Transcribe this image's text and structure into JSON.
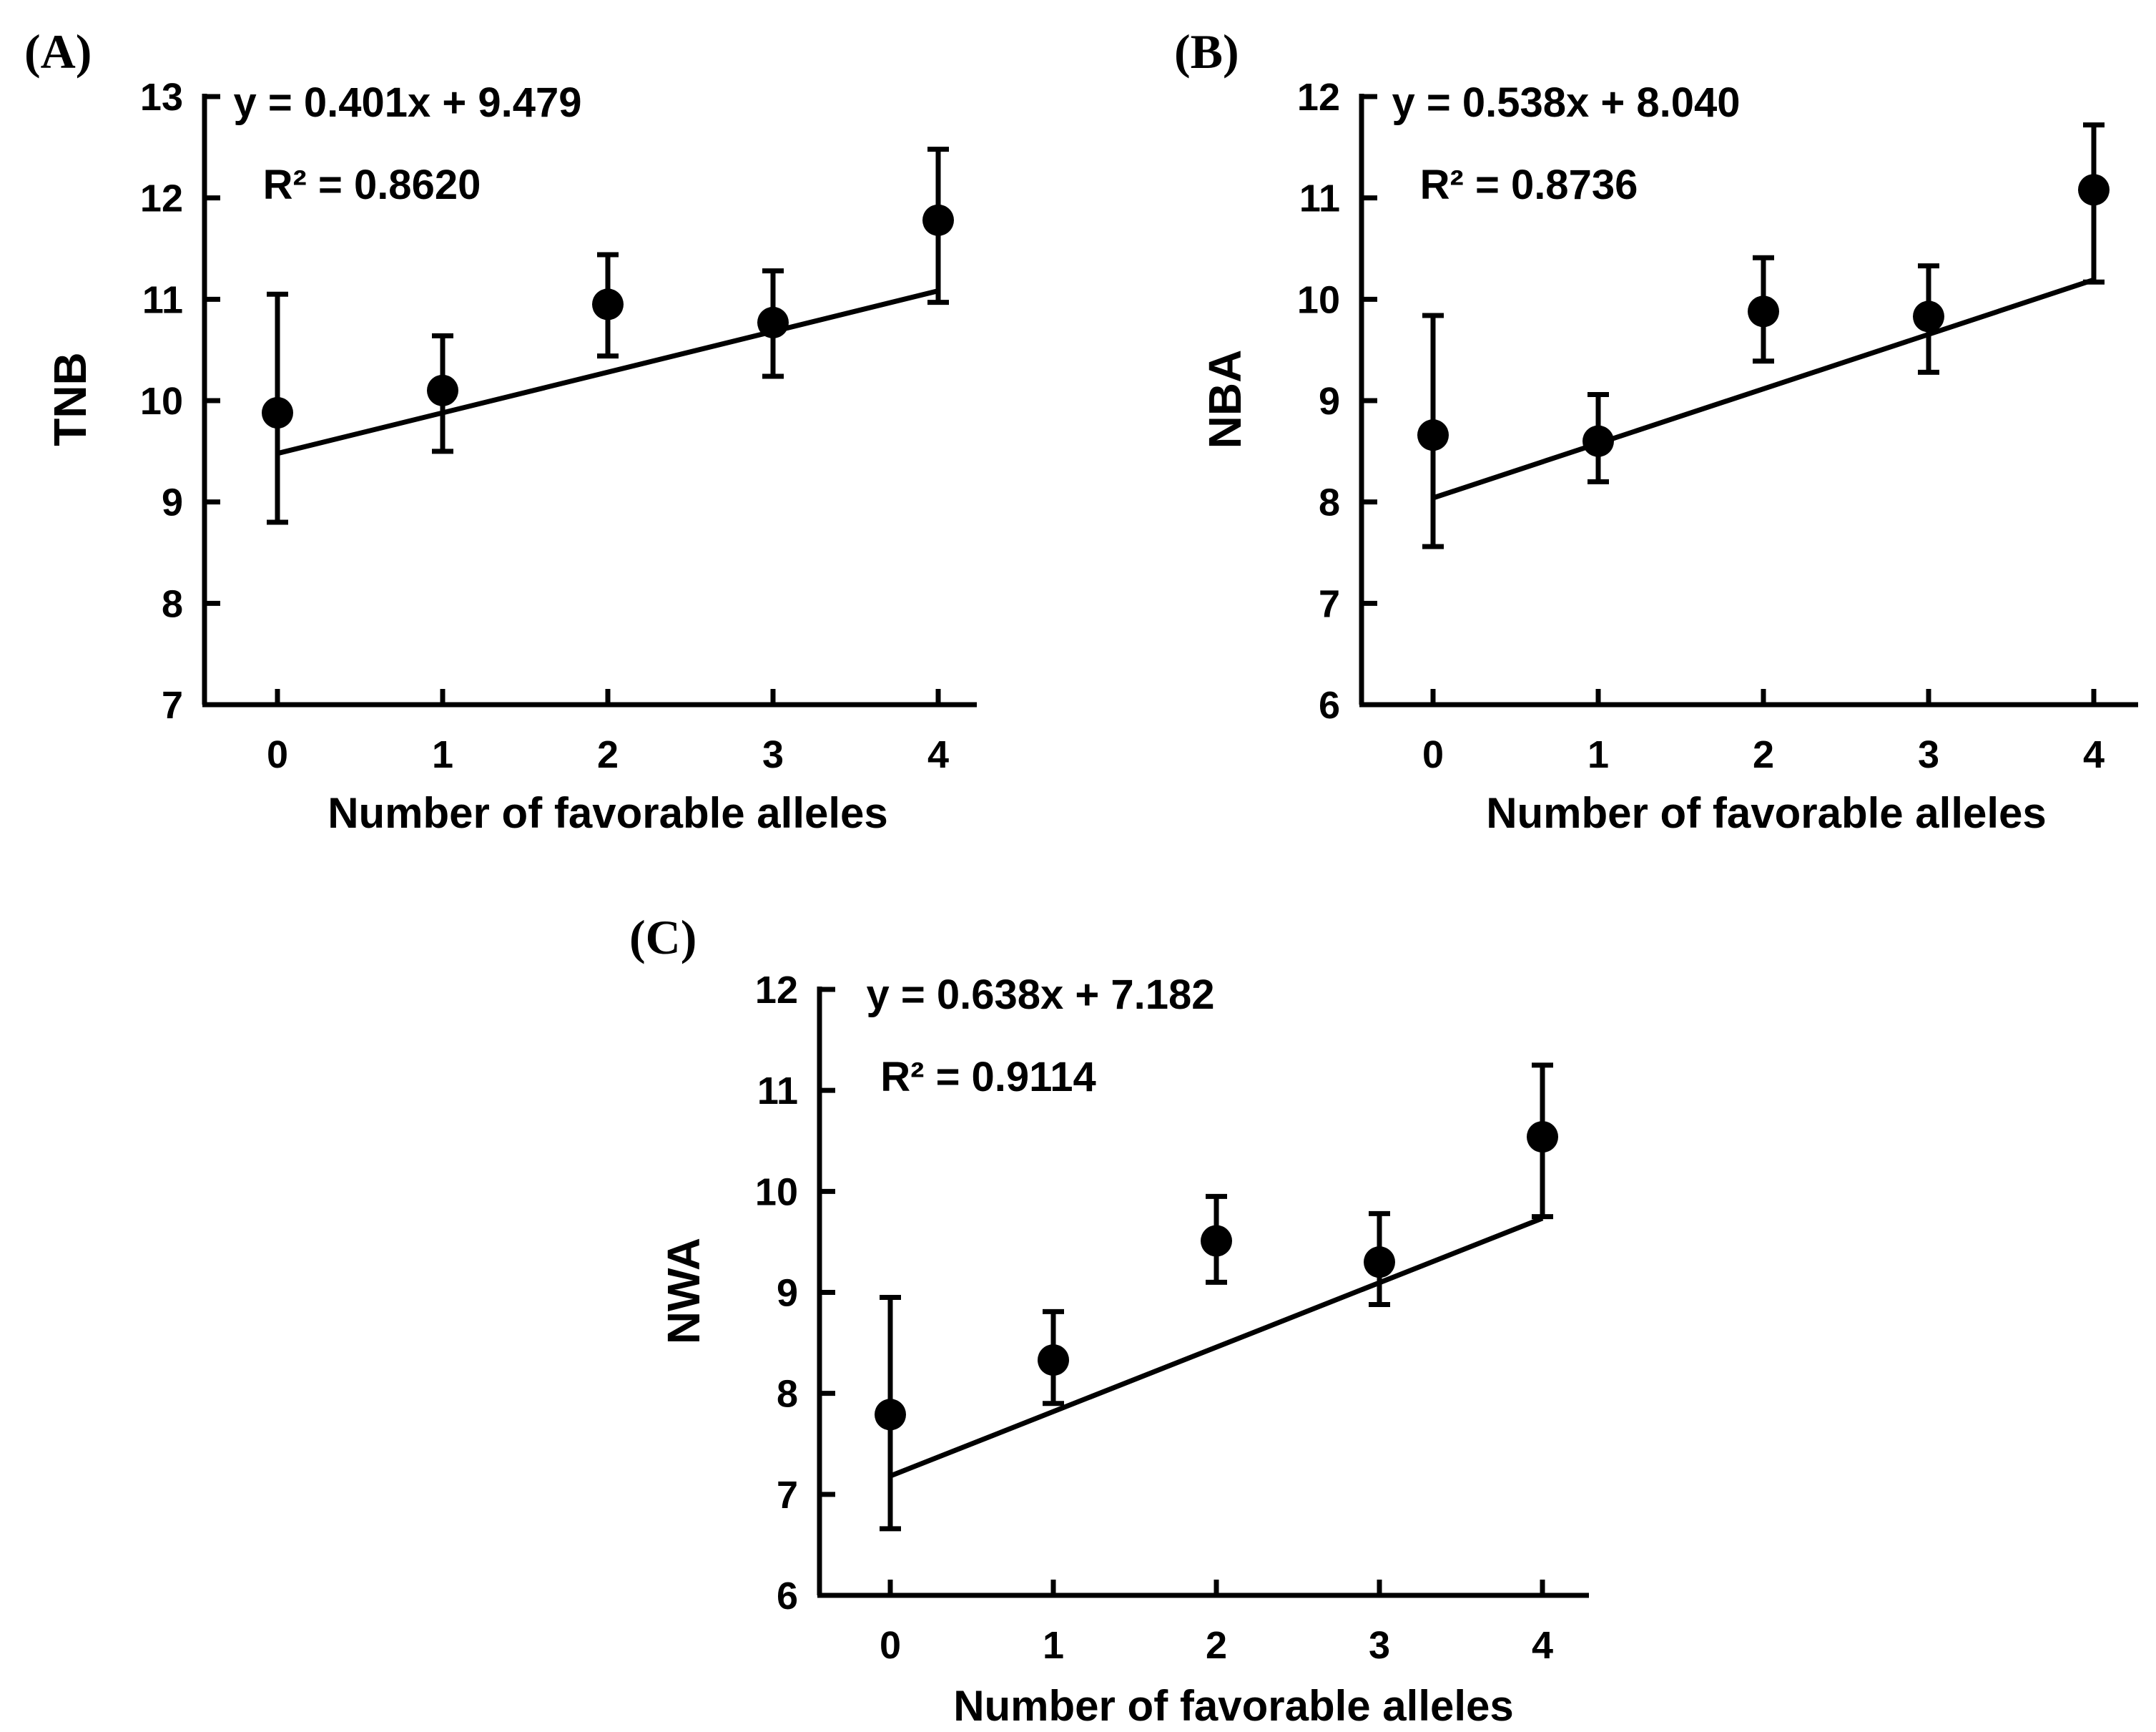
{
  "chart_data": [
    {
      "panel": "(A)",
      "type": "scatter",
      "categories": [
        "0",
        "1",
        "2",
        "3",
        "4"
      ],
      "x": [
        0,
        1,
        2,
        3,
        4
      ],
      "values": [
        9.88,
        10.1,
        10.95,
        10.77,
        11.78
      ],
      "error_high": [
        11.05,
        10.64,
        11.44,
        11.28,
        12.48
      ],
      "error_low": [
        8.8,
        9.5,
        10.44,
        10.24,
        10.97
      ],
      "fit": {
        "slope": 0.401,
        "intercept": 9.479
      },
      "equation": "y = 0.401x + 9.479",
      "r2": "R² = 0.8620",
      "xlabel": "Number of favorable alleles",
      "ylabel": "TNB",
      "ylim": [
        7,
        13
      ],
      "yticks": [
        "7",
        "8",
        "9",
        "10",
        "11",
        "12",
        "13"
      ]
    },
    {
      "panel": "(B)",
      "type": "scatter",
      "categories": [
        "0",
        "1",
        "2",
        "3",
        "4"
      ],
      "x": [
        0,
        1,
        2,
        3,
        4
      ],
      "values": [
        8.66,
        8.6,
        9.88,
        9.83,
        11.08
      ],
      "error_high": [
        9.84,
        9.06,
        10.41,
        10.33,
        11.72
      ],
      "error_low": [
        7.56,
        8.2,
        9.39,
        9.28,
        10.17
      ],
      "fit": {
        "slope": 0.538,
        "intercept": 8.04
      },
      "equation": "y = 0.538x + 8.040",
      "r2": "R² = 0.8736",
      "xlabel": "Number of favorable alleles",
      "ylabel": "NBA",
      "ylim": [
        6,
        12
      ],
      "yticks": [
        "6",
        "7",
        "8",
        "9",
        "10",
        "11",
        "12"
      ]
    },
    {
      "panel": "(C)",
      "type": "scatter",
      "categories": [
        "0",
        "1",
        "2",
        "3",
        "4"
      ],
      "x": [
        0,
        1,
        2,
        3,
        4
      ],
      "values": [
        7.79,
        8.33,
        9.51,
        9.3,
        10.54
      ],
      "error_high": [
        8.95,
        8.81,
        9.95,
        9.78,
        11.25
      ],
      "error_low": [
        6.66,
        7.9,
        9.1,
        8.88,
        9.75
      ],
      "fit": {
        "slope": 0.638,
        "intercept": 7.182
      },
      "equation": "y = 0.638x + 7.182",
      "r2": "R² = 0.9114",
      "xlabel": "Number of favorable alleles",
      "ylabel": "NWA",
      "ylim": [
        6,
        12
      ],
      "yticks": [
        "6",
        "7",
        "8",
        "9",
        "10",
        "11",
        "12"
      ]
    }
  ]
}
